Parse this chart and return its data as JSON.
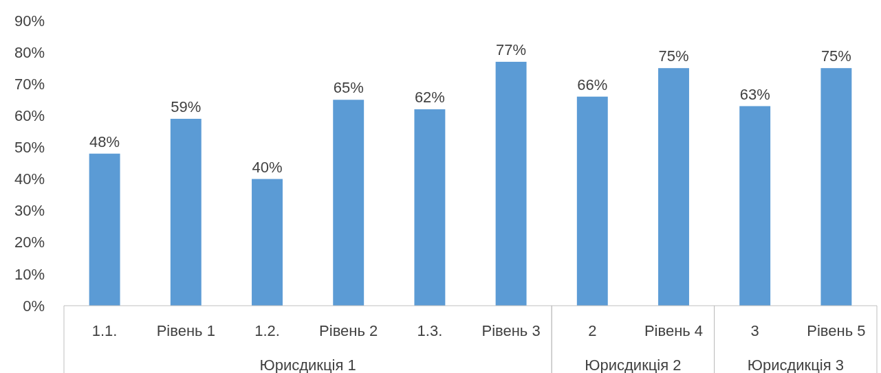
{
  "chart_data": {
    "type": "bar",
    "categories": [
      "1.1.",
      "Рівень 1",
      "1.2.",
      "Рівень 2",
      "1.3.",
      "Рівень 3",
      "2",
      "Рівень 4",
      "3",
      "Рівень 5"
    ],
    "values": [
      48,
      59,
      40,
      65,
      62,
      77,
      66,
      75,
      63,
      75
    ],
    "value_labels": [
      "48%",
      "59%",
      "40%",
      "65%",
      "62%",
      "77%",
      "66%",
      "75%",
      "63%",
      "75%"
    ],
    "color": "#5b9bd5",
    "ylim": [
      0,
      90
    ],
    "yticks": [
      {
        "value": 0,
        "label": "0%"
      },
      {
        "value": 10,
        "label": "10%"
      },
      {
        "value": 20,
        "label": "20%"
      },
      {
        "value": 30,
        "label": "30%"
      },
      {
        "value": 40,
        "label": "40%"
      },
      {
        "value": 50,
        "label": "50%"
      },
      {
        "value": 60,
        "label": "60%"
      },
      {
        "value": 70,
        "label": "70%"
      },
      {
        "value": 80,
        "label": "80%"
      },
      {
        "value": 90,
        "label": "90%"
      }
    ],
    "annotations": [
      "Юрисдикція 1",
      "Юрисдикція 2",
      "Юрисдикція 3"
    ],
    "grid": false
  }
}
